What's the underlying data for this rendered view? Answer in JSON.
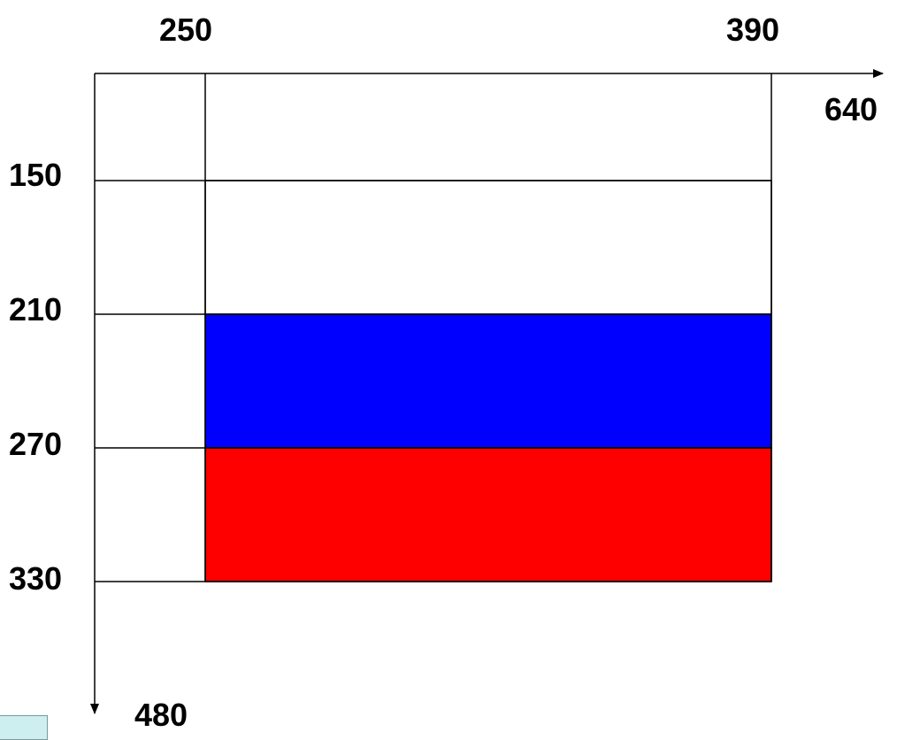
{
  "x_axis": {
    "tick_labels": [
      "250",
      "390"
    ],
    "extent_label": "640"
  },
  "y_axis": {
    "tick_labels": [
      "150",
      "210",
      "270",
      "330"
    ],
    "extent_label": "480"
  },
  "colors": {
    "top_stripe": "#ffffff",
    "middle_stripe": "#0000ff",
    "bottom_stripe": "#ff0000",
    "lines": "#000000",
    "corner_box": "#cdeff0"
  }
}
